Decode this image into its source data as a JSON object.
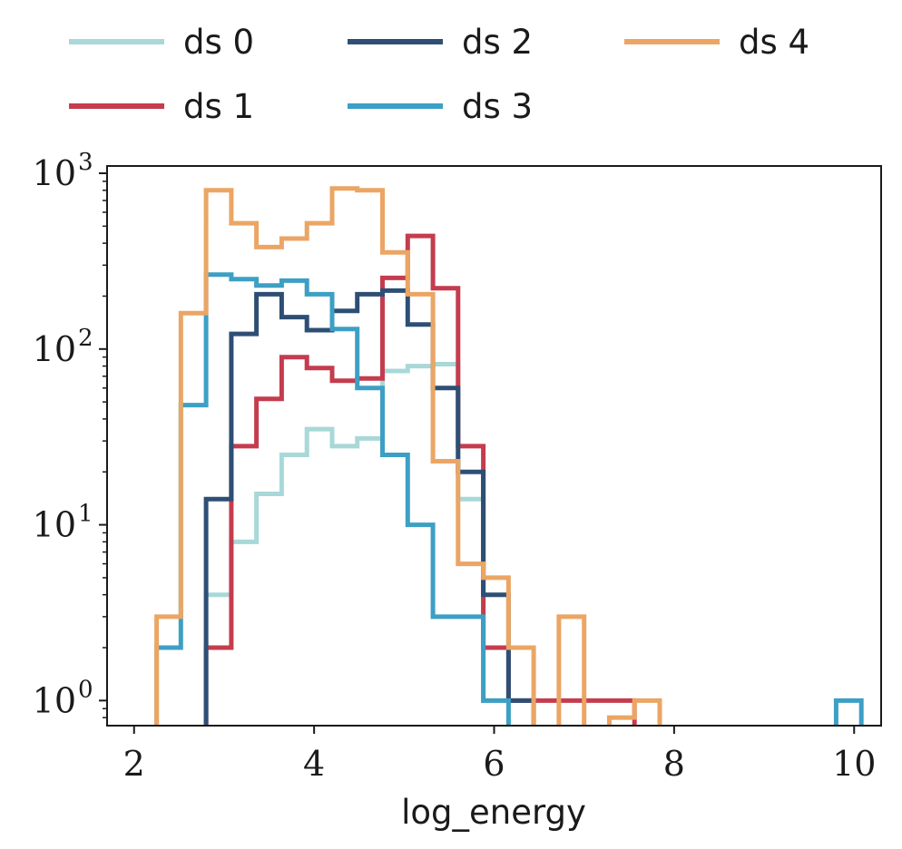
{
  "chart_data": {
    "type": "histogram",
    "xlabel": "log_energy",
    "ylabel": "",
    "yscale": "log",
    "xlim": [
      1.7,
      10.3
    ],
    "ylim": [
      0.72,
      1100
    ],
    "x_ticks": [
      2,
      4,
      6,
      8,
      10
    ],
    "x_tick_labels": [
      "2",
      "4",
      "6",
      "8",
      "10"
    ],
    "y_ticks": [
      1,
      10,
      100,
      1000
    ],
    "y_tick_labels": [
      {
        "base": "10",
        "exp": "0"
      },
      {
        "base": "10",
        "exp": "1"
      },
      {
        "base": "10",
        "exp": "2"
      },
      {
        "base": "10",
        "exp": "3"
      }
    ],
    "grid": false,
    "legend_position": "above plot",
    "bin_edges": [
      2.25,
      2.52,
      2.8,
      3.08,
      3.36,
      3.64,
      3.92,
      4.2,
      4.48,
      4.76,
      5.04,
      5.32,
      5.6,
      5.88,
      6.16,
      6.44,
      6.72,
      7.0,
      7.28,
      7.56,
      7.84,
      8.12,
      8.4,
      8.68,
      8.96,
      9.24,
      9.52,
      9.8,
      10.08
    ],
    "series": [
      {
        "name": "ds 0",
        "color": "#a8d8d8",
        "values": [
          0,
          0,
          4,
          8,
          15,
          25,
          35,
          28,
          31,
          75,
          80,
          82,
          14,
          1,
          0,
          0,
          0,
          0,
          0,
          0,
          0,
          0,
          0,
          0,
          0,
          0,
          0,
          0
        ]
      },
      {
        "name": "ds 1",
        "color": "#c43c4e",
        "values": [
          0,
          0,
          2,
          28,
          52,
          90,
          78,
          66,
          68,
          254,
          440,
          222,
          28,
          2,
          1,
          1,
          1,
          1,
          1,
          0,
          0,
          0,
          0,
          0,
          0,
          0,
          0,
          0
        ]
      },
      {
        "name": "ds 2",
        "color": "#2e4f75",
        "values": [
          0,
          0,
          14,
          122,
          205,
          152,
          128,
          165,
          205,
          215,
          138,
          60,
          20,
          4,
          1,
          0,
          0,
          0,
          0,
          0,
          0,
          0,
          0,
          0,
          0,
          0,
          0,
          0
        ]
      },
      {
        "name": "ds 3",
        "color": "#3d9fc4",
        "values": [
          2,
          48,
          265,
          250,
          230,
          245,
          205,
          130,
          60,
          25,
          10,
          3,
          3,
          1,
          0,
          0,
          0,
          0,
          0,
          0,
          0,
          0,
          0,
          0,
          0,
          0,
          0,
          1
        ]
      },
      {
        "name": "ds 4",
        "color": "#eba564",
        "values": [
          3,
          160,
          800,
          520,
          380,
          425,
          520,
          820,
          800,
          355,
          205,
          23,
          6,
          5,
          2,
          0,
          3,
          0,
          0.8,
          1,
          0,
          0,
          0,
          0,
          0,
          0,
          0,
          0
        ]
      }
    ]
  }
}
